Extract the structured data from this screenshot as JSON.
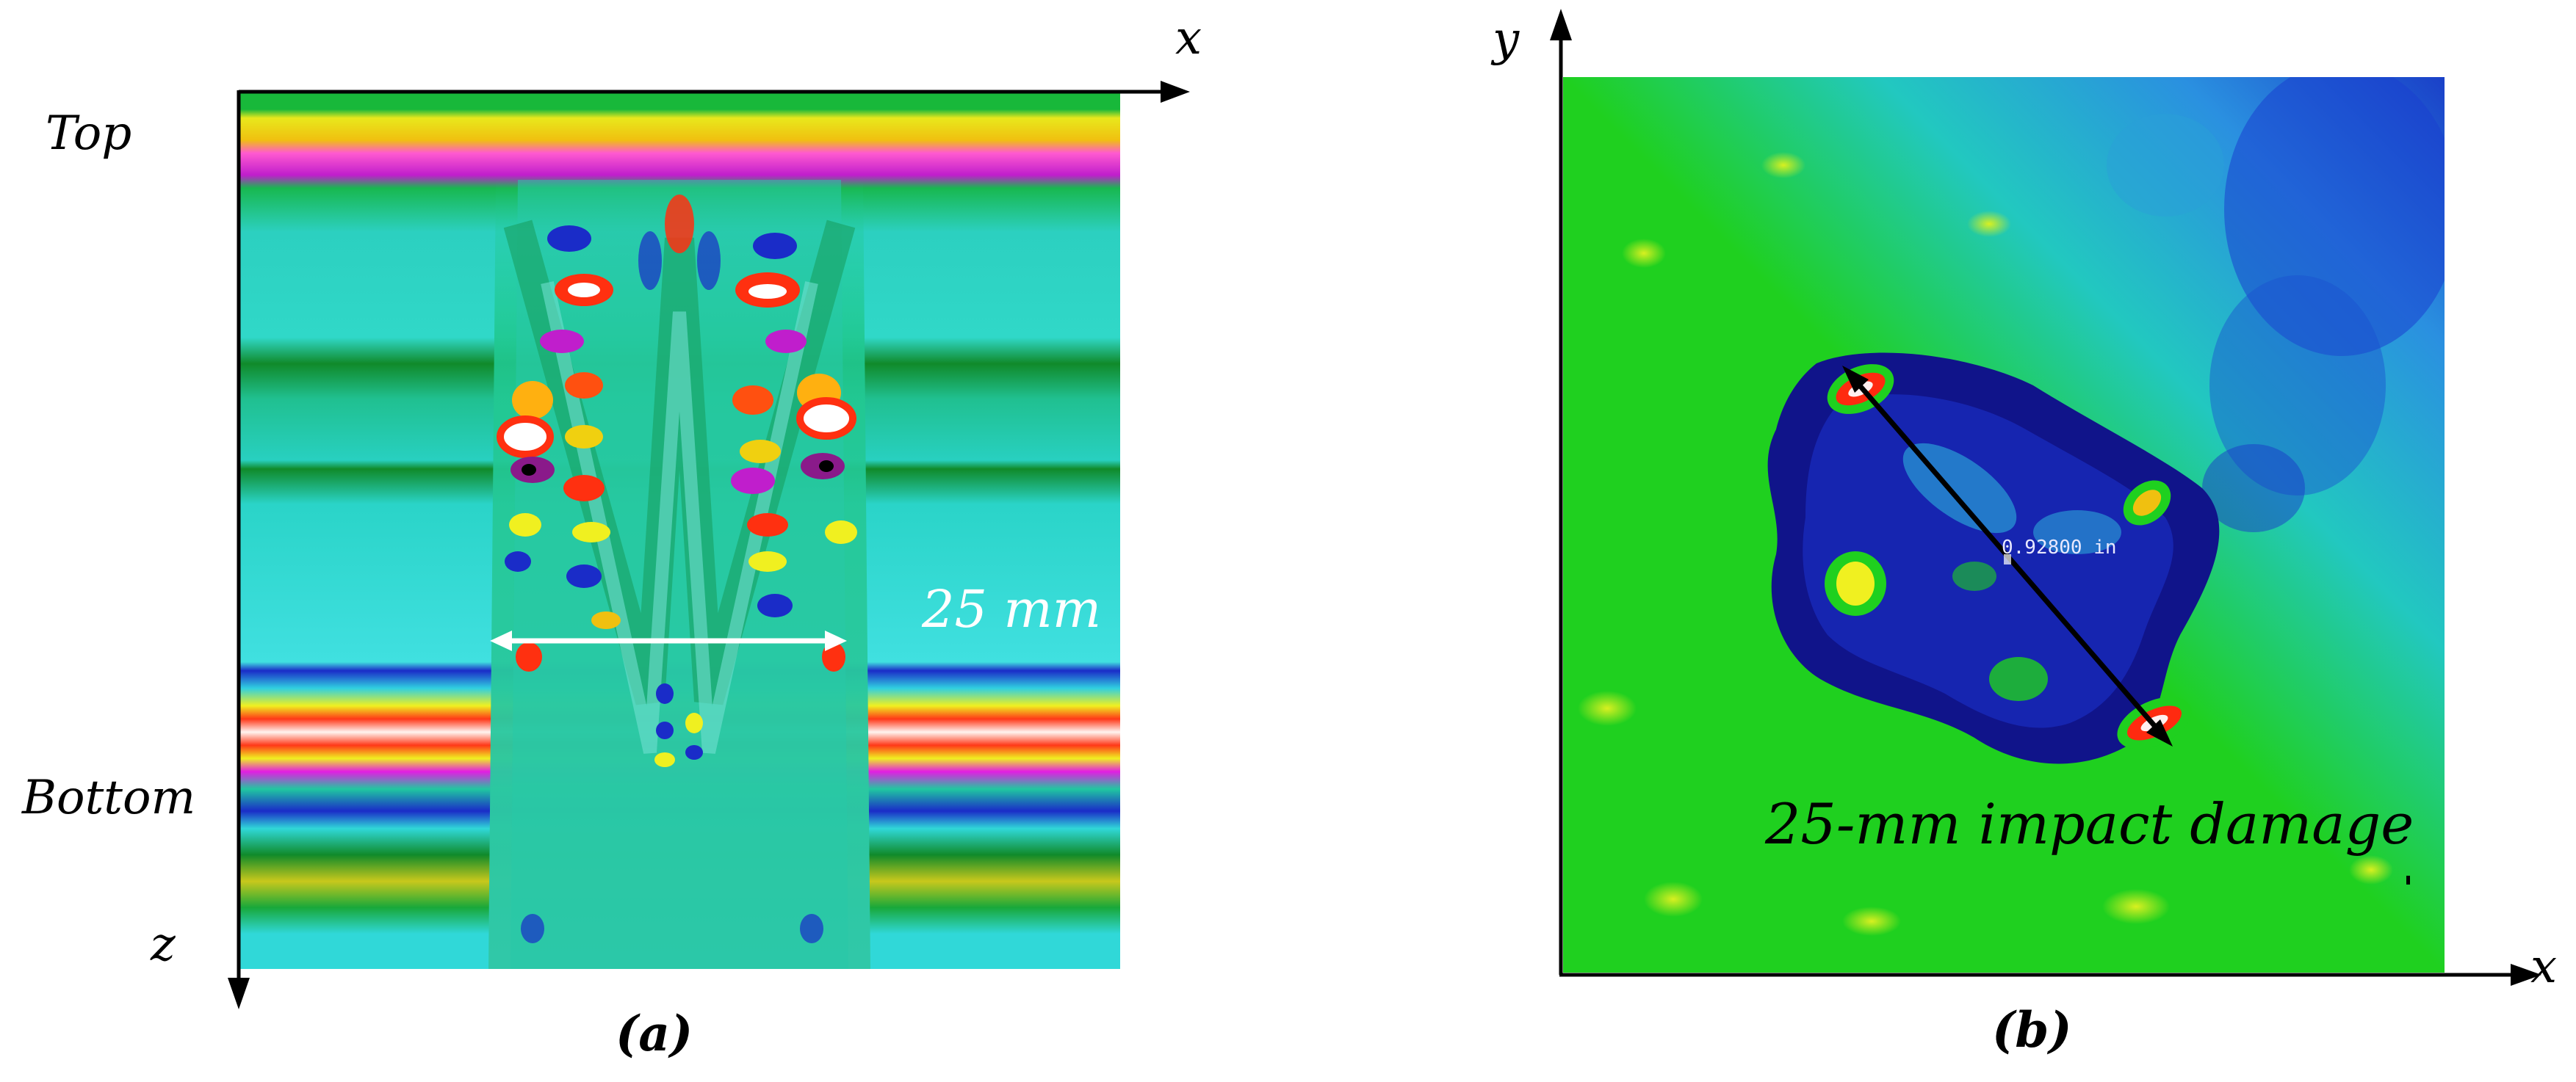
{
  "panel_a": {
    "axis_x_label": "x",
    "axis_z_label": "z",
    "top_label": "Top",
    "bottom_label": "Bottom",
    "measure_label": "25 mm",
    "caption": "(a)"
  },
  "panel_b": {
    "axis_x_label": "x",
    "axis_y_label": "y",
    "measure_label": "0.92800 in",
    "damage_label": "25-mm impact damage",
    "caption": "(b)"
  },
  "colors": {
    "background_green": "#1fd01f",
    "cyan": "#22d8d8",
    "yellow": "#f2f21a",
    "magenta": "#e21ee2",
    "red": "#ff2a10",
    "blue": "#1a2cc8",
    "navy": "#10148a"
  }
}
